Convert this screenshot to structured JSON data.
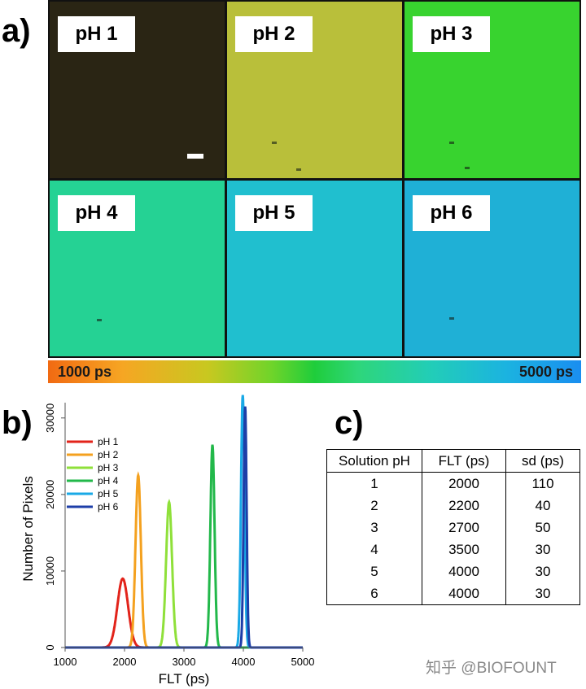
{
  "panel_labels": {
    "a": "a)",
    "b": "b)",
    "c": "c)"
  },
  "micrographs": {
    "tiles": [
      {
        "label": "pH 1",
        "color": "#2a2514"
      },
      {
        "label": "pH 2",
        "color": "#b9bf3a"
      },
      {
        "label": "pH 3",
        "color": "#38d32f"
      },
      {
        "label": "pH 4",
        "color": "#25d294"
      },
      {
        "label": "pH 5",
        "color": "#20bfcf"
      },
      {
        "label": "pH 6",
        "color": "#1fb0d6"
      }
    ]
  },
  "colorbar": {
    "min_label": "1000 ps",
    "max_label": "5000 ps"
  },
  "chart_data": {
    "type": "line",
    "title": "",
    "xlabel": "FLT (ps)",
    "ylabel": "Number of Pixels",
    "xlim": [
      1000,
      5000
    ],
    "ylim": [
      0,
      32000
    ],
    "xticks": [
      1000,
      2000,
      3000,
      4000,
      5000
    ],
    "yticks": [
      0,
      10000,
      20000,
      30000
    ],
    "legend_position": "upper-left",
    "series": [
      {
        "name": "pH 1",
        "color": "#e2231a",
        "center": 1970,
        "width": 90,
        "peak": 9000
      },
      {
        "name": "pH 2",
        "color": "#f4a11f",
        "center": 2230,
        "width": 45,
        "peak": 22500
      },
      {
        "name": "pH 3",
        "color": "#8fe03a",
        "center": 2750,
        "width": 50,
        "peak": 19000
      },
      {
        "name": "pH 4",
        "color": "#22b84a",
        "center": 3480,
        "width": 35,
        "peak": 26500
      },
      {
        "name": "pH 5",
        "color": "#19a9e6",
        "center": 3990,
        "width": 30,
        "peak": 33000
      },
      {
        "name": "pH 6",
        "color": "#1d3ea8",
        "center": 4030,
        "width": 25,
        "peak": 31500
      }
    ]
  },
  "table": {
    "headers": [
      "Solution pH",
      "FLT (ps)",
      "sd (ps)"
    ],
    "rows": [
      [
        "1",
        "2000",
        "110"
      ],
      [
        "2",
        "2200",
        "40"
      ],
      [
        "3",
        "2700",
        "50"
      ],
      [
        "4",
        "3500",
        "30"
      ],
      [
        "5",
        "4000",
        "30"
      ],
      [
        "6",
        "4000",
        "30"
      ]
    ]
  },
  "watermark": "知乎 @BIOFOUNT"
}
